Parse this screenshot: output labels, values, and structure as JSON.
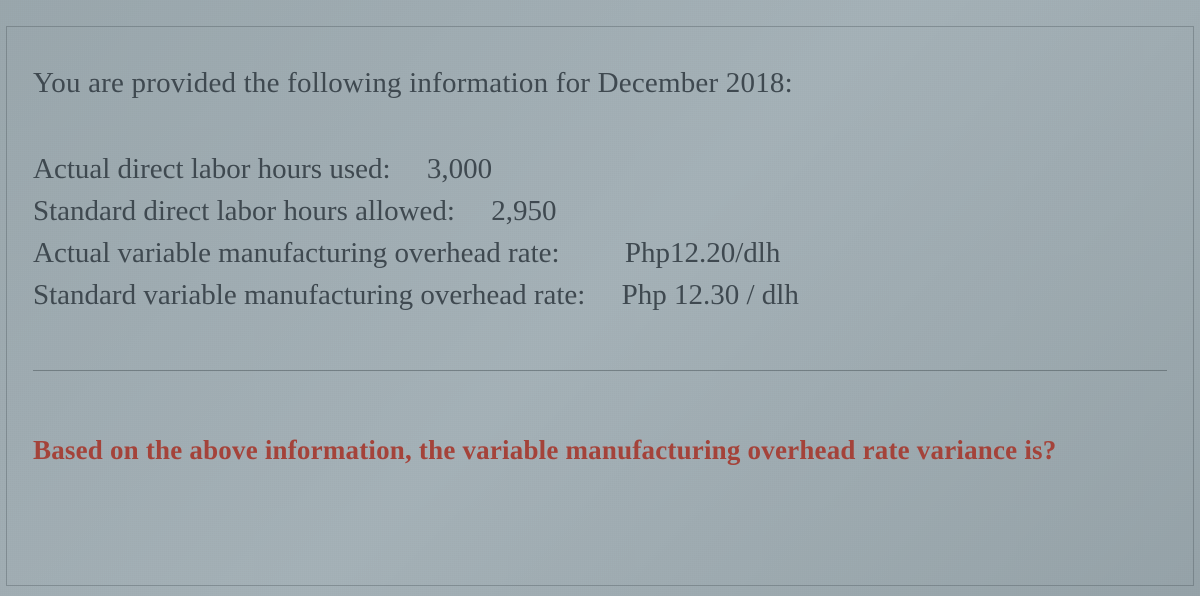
{
  "intro": "You are provided the following information for December 2018:",
  "lines": {
    "l1_label": "Actual direct labor hours used:",
    "l1_value": "3,000",
    "l2_label": "Standard direct labor hours allowed:",
    "l2_value": "2,950",
    "l3_label": "Actual variable manufacturing overhead rate:",
    "l3_value": "Php12.20/dlh",
    "l4_label": "Standard variable manufacturing overhead rate:",
    "l4_value": "Php 12.30 / dlh"
  },
  "question": "Based on the above information, the variable manufacturing overhead rate variance is?",
  "style": {
    "background_color": "#9fa9af",
    "text_color": "#3f4950",
    "question_color": "#a4433a",
    "font_family": "Georgia, serif",
    "intro_fontsize": 29,
    "data_fontsize": 29,
    "question_fontsize": 27,
    "divider_color": "rgba(60,70,75,0.45)",
    "frame_border_color": "rgba(70,80,85,0.35)"
  }
}
